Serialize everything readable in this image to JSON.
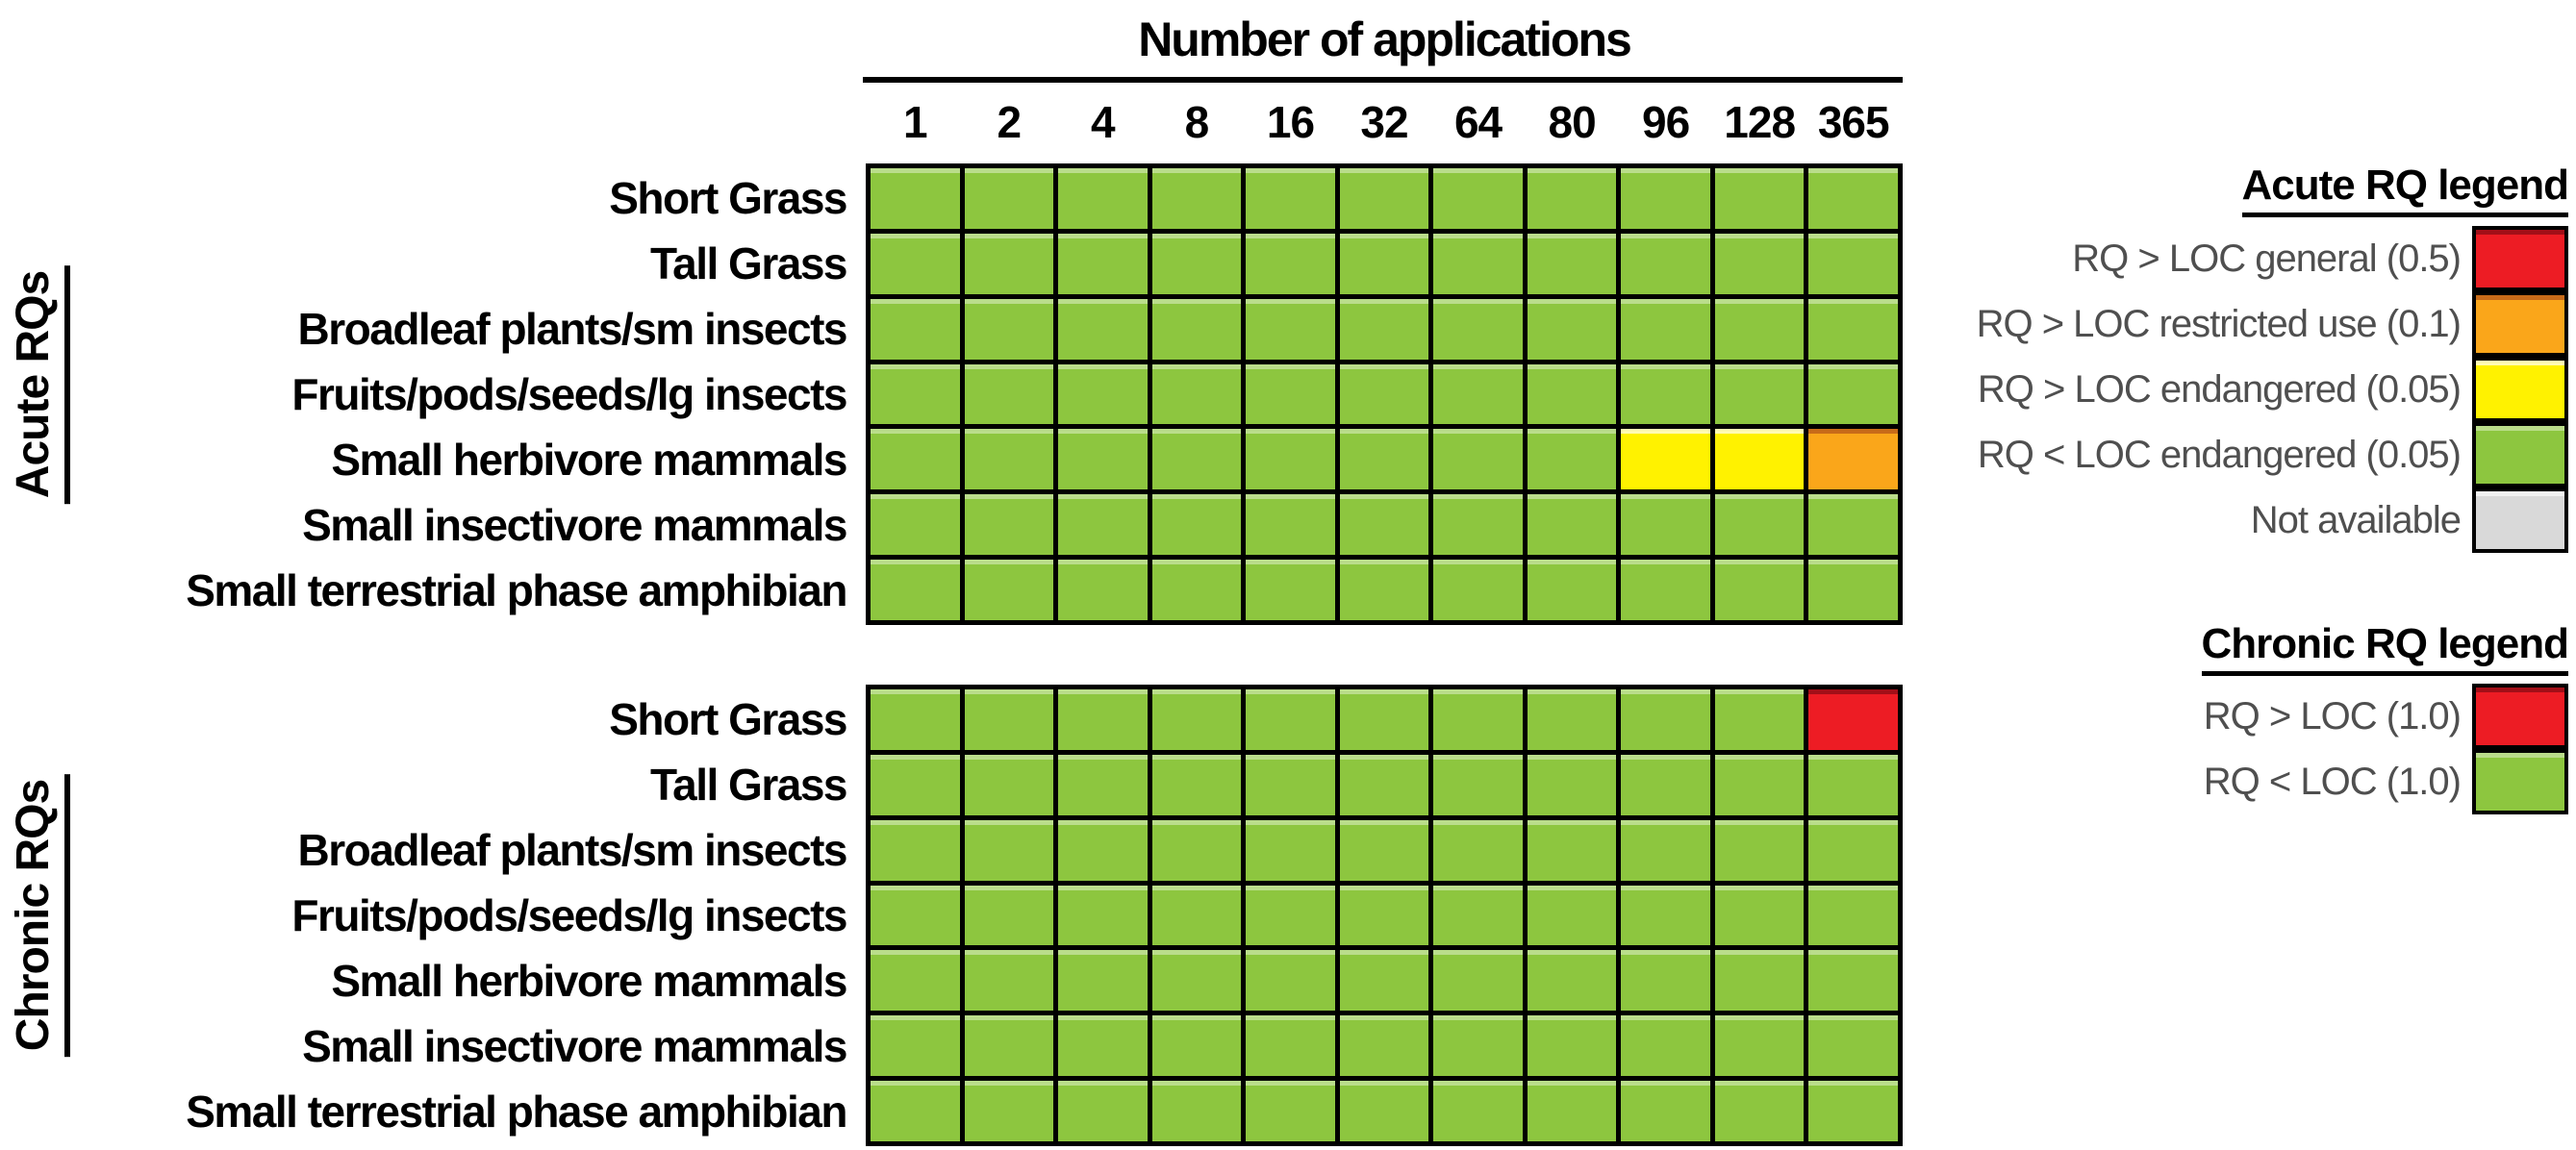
{
  "palette": {
    "green": "#8DC63F",
    "yellow": "#FFF200",
    "orange": "#FAA61A",
    "red": "#ED1C24",
    "gray": "#D9D9D9",
    "grid_line": "#000000"
  },
  "chart_data": {
    "type": "heatmap",
    "columns_title": "Number of applications",
    "columns": [
      "1",
      "2",
      "4",
      "8",
      "16",
      "32",
      "64",
      "80",
      "96",
      "128",
      "365"
    ],
    "rows": [
      "Short Grass",
      "Tall Grass",
      "Broadleaf plants/sm insects",
      "Fruits/pods/seeds/lg insects",
      "Small herbivore mammals",
      "Small insectivore mammals",
      "Small terrestrial phase amphibian"
    ],
    "sections": [
      {
        "id": "acute",
        "name": "Acute RQs",
        "cells": [
          [
            "green",
            "green",
            "green",
            "green",
            "green",
            "green",
            "green",
            "green",
            "green",
            "green",
            "green"
          ],
          [
            "green",
            "green",
            "green",
            "green",
            "green",
            "green",
            "green",
            "green",
            "green",
            "green",
            "green"
          ],
          [
            "green",
            "green",
            "green",
            "green",
            "green",
            "green",
            "green",
            "green",
            "green",
            "green",
            "green"
          ],
          [
            "green",
            "green",
            "green",
            "green",
            "green",
            "green",
            "green",
            "green",
            "green",
            "green",
            "green"
          ],
          [
            "green",
            "green",
            "green",
            "green",
            "green",
            "green",
            "green",
            "green",
            "yellow",
            "yellow",
            "orange"
          ],
          [
            "green",
            "green",
            "green",
            "green",
            "green",
            "green",
            "green",
            "green",
            "green",
            "green",
            "green"
          ],
          [
            "green",
            "green",
            "green",
            "green",
            "green",
            "green",
            "green",
            "green",
            "green",
            "green",
            "green"
          ]
        ]
      },
      {
        "id": "chronic",
        "name": "Chronic RQs",
        "cells": [
          [
            "green",
            "green",
            "green",
            "green",
            "green",
            "green",
            "green",
            "green",
            "green",
            "green",
            "red"
          ],
          [
            "green",
            "green",
            "green",
            "green",
            "green",
            "green",
            "green",
            "green",
            "green",
            "green",
            "green"
          ],
          [
            "green",
            "green",
            "green",
            "green",
            "green",
            "green",
            "green",
            "green",
            "green",
            "green",
            "green"
          ],
          [
            "green",
            "green",
            "green",
            "green",
            "green",
            "green",
            "green",
            "green",
            "green",
            "green",
            "green"
          ],
          [
            "green",
            "green",
            "green",
            "green",
            "green",
            "green",
            "green",
            "green",
            "green",
            "green",
            "green"
          ],
          [
            "green",
            "green",
            "green",
            "green",
            "green",
            "green",
            "green",
            "green",
            "green",
            "green",
            "green"
          ],
          [
            "green",
            "green",
            "green",
            "green",
            "green",
            "green",
            "green",
            "green",
            "green",
            "green",
            "green"
          ]
        ]
      }
    ],
    "legends": [
      {
        "id": "acute",
        "title": "Acute RQ legend",
        "entries": [
          {
            "label": "RQ > LOC general (0.5)",
            "color": "red"
          },
          {
            "label": "RQ > LOC restricted use (0.1)",
            "color": "orange"
          },
          {
            "label": "RQ > LOC endangered (0.05)",
            "color": "yellow"
          },
          {
            "label": "RQ < LOC endangered (0.05)",
            "color": "green"
          },
          {
            "label": "Not available",
            "color": "gray"
          }
        ]
      },
      {
        "id": "chronic",
        "title": "Chronic RQ legend",
        "entries": [
          {
            "label": "RQ > LOC (1.0)",
            "color": "red"
          },
          {
            "label": "RQ < LOC (1.0)",
            "color": "green"
          }
        ]
      }
    ]
  }
}
